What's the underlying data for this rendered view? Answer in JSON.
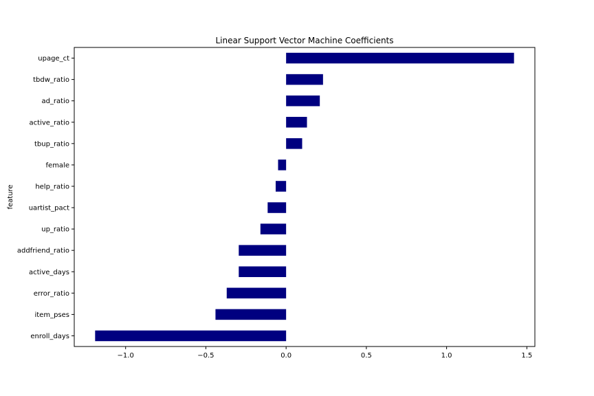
{
  "chart_data": {
    "type": "bar",
    "orientation": "horizontal",
    "title": "Linear Support Vector Machine Coefficients",
    "ylabel": "feature",
    "xlabel": "",
    "categories": [
      "upage_ct",
      "tbdw_ratio",
      "ad_ratio",
      "active_ratio",
      "tbup_ratio",
      "female",
      "help_ratio",
      "uartist_pact",
      "up_ratio",
      "addfriend_ratio",
      "active_days",
      "error_ratio",
      "item_pses",
      "enroll_days"
    ],
    "values": [
      1.42,
      0.23,
      0.21,
      0.13,
      0.1,
      -0.05,
      -0.065,
      -0.115,
      -0.16,
      -0.295,
      -0.295,
      -0.37,
      -0.44,
      -1.19
    ],
    "xlim": [
      -1.32,
      1.55
    ],
    "xticks": [
      -1.0,
      -0.5,
      0.0,
      0.5,
      1.0,
      1.5
    ],
    "xtick_labels": [
      "−1.0",
      "−0.5",
      "0.0",
      "0.5",
      "1.0",
      "1.5"
    ],
    "bar_color": "#000080",
    "grid": false,
    "legend": "none"
  }
}
